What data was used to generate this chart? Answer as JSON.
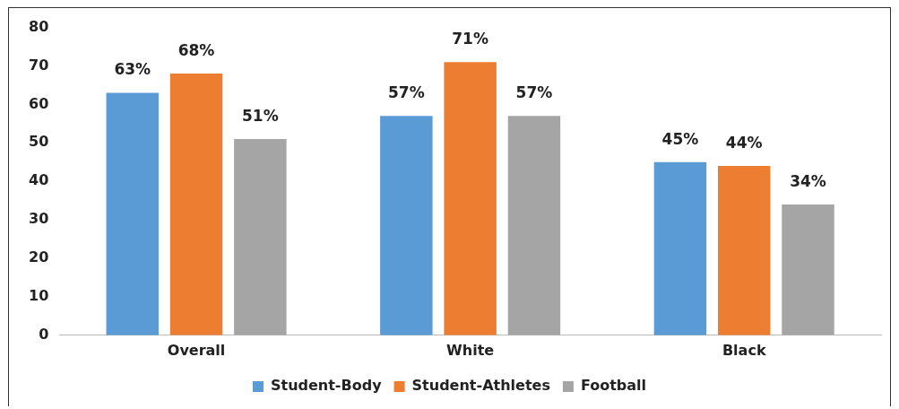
{
  "chart_data": {
    "type": "bar",
    "categories": [
      "Overall",
      "White",
      "Black"
    ],
    "series": [
      {
        "name": "Student-Body",
        "color": "#5b9bd5",
        "values": [
          63,
          57,
          45
        ],
        "value_labels": [
          "63%",
          "57%",
          "45%"
        ]
      },
      {
        "name": "Student-Athletes",
        "color": "#ed7d31",
        "values": [
          68,
          71,
          44
        ],
        "value_labels": [
          "68%",
          "71%",
          "44%"
        ]
      },
      {
        "name": "Football",
        "color": "#a5a5a5",
        "values": [
          51,
          57,
          34
        ],
        "value_labels": [
          "51%",
          "57%",
          "34%"
        ]
      }
    ],
    "ylim": [
      0,
      80
    ],
    "yticks": [
      0,
      10,
      20,
      30,
      40,
      50,
      60,
      70,
      80
    ],
    "grid": false,
    "legend": "bottom"
  }
}
